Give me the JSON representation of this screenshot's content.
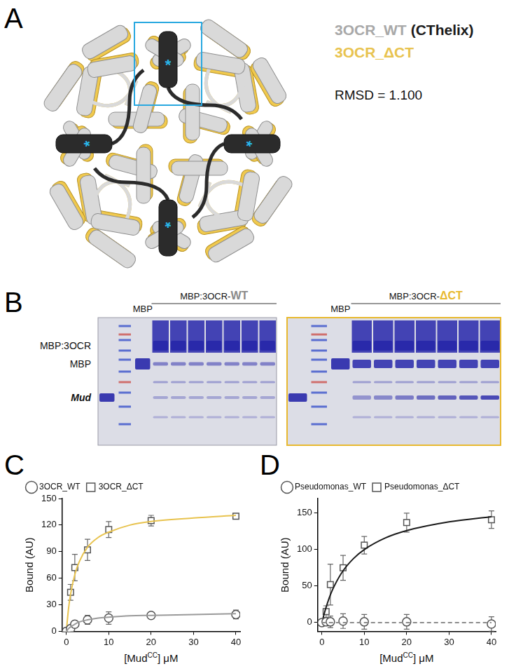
{
  "panel_a": {
    "letter": "A",
    "label_lines": [
      [
        {
          "text": "3OCR_WT",
          "color": "#a8a8a8"
        },
        {
          "text": "(CThelix)",
          "color": "#1a1a1a"
        }
      ],
      [
        {
          "text": "3OCR_ΔCT",
          "color": "#e8c34f"
        }
      ]
    ],
    "rmsd": "RMSD = 1.100",
    "helix_mark": "*"
  },
  "panel_b": {
    "letter": "B",
    "band_labels": [
      "MBP:3OCR",
      "MBP",
      "Mud"
    ],
    "gels": [
      {
        "lane_label": "MBP",
        "group_label": "MBP:3OCR-",
        "variant": "WT",
        "variant_color": "#8a8a8a"
      },
      {
        "lane_label": "MBP",
        "group_label": "MBP:3OCR-",
        "variant": "ΔCT",
        "variant_color": "#e8b92f"
      }
    ]
  },
  "chart_data": [
    {
      "panel": "C",
      "type": "scatter",
      "xlabel": {
        "before": "[Mud",
        "sup": "CC",
        "after": "] μM"
      },
      "ylabel": "Bound (AU)",
      "xlim": [
        -1,
        41
      ],
      "xticks": [
        0,
        10,
        20,
        30,
        40
      ],
      "ylim": [
        0,
        150
      ],
      "yticks": [
        0,
        30,
        60,
        90,
        120,
        150
      ],
      "grid": false,
      "legend": "top-left",
      "x": [
        0,
        1,
        2,
        5,
        10,
        20,
        40
      ],
      "series": [
        {
          "name": "3OCR_WT",
          "color": "#9a9a9a",
          "marker": "circle",
          "line_style": "solid",
          "values": [
            0,
            3,
            8,
            13,
            15,
            18,
            19
          ],
          "errors": [
            1,
            3,
            3,
            5,
            7,
            3,
            5
          ],
          "fit": {
            "x": [
              0,
              0.5,
              1,
              2,
              3,
              5,
              7.5,
              10,
              15,
              20,
              30,
              40
            ],
            "values": [
              0,
              3,
              5,
              8,
              10.5,
              13,
              15,
              16,
              17.5,
              18,
              19,
              20
            ]
          }
        },
        {
          "name": "3OCR_ΔCT",
          "color": "#e8c34f",
          "marker": "square",
          "line_style": "solid",
          "values": [
            0,
            44,
            72,
            92,
            115,
            125,
            130
          ],
          "errors": [
            2,
            9,
            15,
            12,
            9,
            6,
            3
          ],
          "fit": {
            "x": [
              0,
              0.5,
              1,
              2,
              3,
              5,
              7.5,
              10,
              15,
              20,
              30,
              40
            ],
            "values": [
              0,
              25,
              42,
              64,
              78,
              95,
              106,
              112,
              120,
              124,
              128,
              131
            ]
          }
        }
      ]
    },
    {
      "panel": "D",
      "type": "scatter",
      "xlabel": {
        "before": "[Mud",
        "sup": "CC",
        "after": "] μM"
      },
      "ylabel": "Bound (AU)",
      "xlim": [
        -1,
        41
      ],
      "xticks": [
        0,
        10,
        20,
        30,
        40
      ],
      "ylim": [
        -12,
        170
      ],
      "yticks": [
        0,
        50,
        100,
        150
      ],
      "grid": false,
      "legend": "top-left",
      "x": [
        0,
        1,
        2,
        5,
        10,
        20,
        40
      ],
      "series": [
        {
          "name": "Pseudomonas_WT",
          "color": "#8c8c8c",
          "marker": "circle",
          "line_style": "dashed",
          "values": [
            0,
            1,
            1,
            2,
            1,
            1,
            -2
          ],
          "errors": [
            1,
            3,
            8,
            10,
            10,
            10,
            10
          ],
          "fit": {
            "x": [
              0,
              40
            ],
            "values": [
              0,
              0
            ]
          }
        },
        {
          "name": "Pseudomonas_ΔCT",
          "color": "#1a1a1a",
          "marker": "square",
          "line_style": "solid",
          "values": [
            0,
            15,
            52,
            75,
            106,
            137,
            141
          ],
          "errors": [
            2,
            8,
            28,
            17,
            12,
            13,
            12
          ],
          "fit": {
            "x": [
              0,
              0.5,
              1,
              2,
              3,
              5,
              7.5,
              10,
              15,
              20,
              30,
              40
            ],
            "values": [
              0,
              11,
              21,
              38,
              51,
              71,
              88,
              100,
              116,
              126,
              138,
              145
            ]
          }
        }
      ]
    }
  ]
}
